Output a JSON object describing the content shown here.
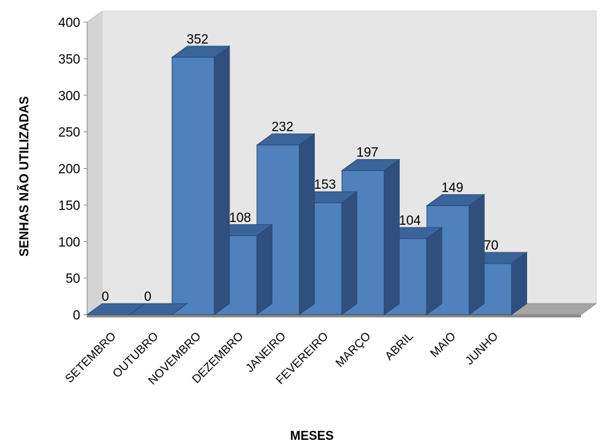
{
  "chart_data": {
    "type": "bar",
    "style": "3d-column",
    "title": "",
    "xlabel": "MESES",
    "ylabel": "SENHAS NÃO UTILIZADAS",
    "categories": [
      "SETEMBRO",
      "OUTUBRO",
      "NOVEMBRO",
      "DEZEMBRO",
      "JANEIRO",
      "FEVEREIRO",
      "MARÇO",
      "ABRIL",
      "MAIO",
      "JUNHO"
    ],
    "values": [
      0,
      0,
      352,
      108,
      232,
      153,
      197,
      104,
      149,
      70
    ],
    "yticks": [
      "0",
      "50",
      "100",
      "150",
      "200",
      "250",
      "300",
      "350",
      "400"
    ],
    "ylim": [
      0,
      400
    ],
    "grid": false,
    "legend": "none",
    "colors": {
      "bar_front": "#4f81bd",
      "bar_side": "#2f4f7e",
      "bar_top": "#3a649a",
      "bar_edge": "#2a4a75",
      "wall": "#e6e6e6",
      "floor": "#a6a6a6"
    }
  }
}
